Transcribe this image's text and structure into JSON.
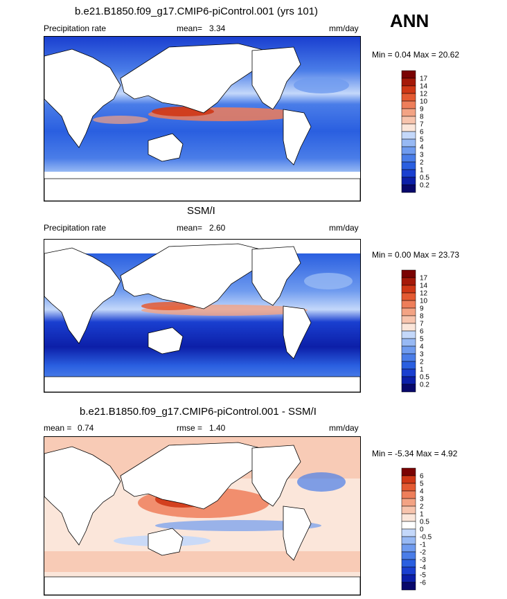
{
  "season": "ANN",
  "units_note": "mm/day",
  "chart_data": [
    {
      "type": "heatmap",
      "title": "b.e21.B1850.f09_g17.CMIP6-piControl.001 (yrs 101)",
      "left_label": "Precipitation rate",
      "stat1_label": "mean=",
      "stat1_value": "3.34",
      "units": "mm/day",
      "minmax": "Min =   0.04 Max =  20.62",
      "colorbar": {
        "levels": [
          "0.2",
          "0.5",
          "1",
          "2",
          "3",
          "4",
          "5",
          "6",
          "7",
          "8",
          "9",
          "10",
          "12",
          "14",
          "17"
        ],
        "colors": [
          "#08086b",
          "#0c1fa8",
          "#1a3fd0",
          "#2a5fe0",
          "#4a7de8",
          "#6f9bef",
          "#97b9f4",
          "#c4d8fa",
          "#fbe6da",
          "#f7c4ad",
          "#f3a384",
          "#ee7e5a",
          "#e45a32",
          "#cf3716",
          "#a51909",
          "#7a0303"
        ]
      }
    },
    {
      "type": "heatmap",
      "title": "SSM/I",
      "left_label": "Precipitation rate",
      "stat1_label": "mean=",
      "stat1_value": "2.60",
      "units": "mm/day",
      "minmax": "Min =   0.00 Max =  23.73",
      "colorbar": {
        "levels": [
          "0.2",
          "0.5",
          "1",
          "2",
          "3",
          "4",
          "5",
          "6",
          "7",
          "8",
          "9",
          "10",
          "12",
          "14",
          "17"
        ],
        "colors": [
          "#08086b",
          "#0c1fa8",
          "#1a3fd0",
          "#2a5fe0",
          "#4a7de8",
          "#6f9bef",
          "#97b9f4",
          "#c4d8fa",
          "#fbe6da",
          "#f7c4ad",
          "#f3a384",
          "#ee7e5a",
          "#e45a32",
          "#cf3716",
          "#a51909",
          "#7a0303"
        ]
      }
    },
    {
      "type": "heatmap",
      "title": "b.e21.B1850.f09_g17.CMIP6-piControl.001 - SSM/I",
      "left_label": "mean =",
      "left_value": "0.74",
      "stat1_label": "rmse =",
      "stat1_value": "1.40",
      "units": "mm/day",
      "minmax": "Min =  -5.34 Max =   4.92",
      "colorbar": {
        "levels": [
          "-6",
          "-5",
          "-4",
          "-3",
          "-2",
          "-1",
          "-0.5",
          "0",
          "0.5",
          "1",
          "2",
          "3",
          "4",
          "5",
          "6"
        ],
        "colors": [
          "#08086b",
          "#0c1fa8",
          "#1a3fd0",
          "#2a5fe0",
          "#4a7de8",
          "#6f9bef",
          "#97b9f4",
          "#c4d8fa",
          "#ffffff",
          "#fbe6da",
          "#f7c4ad",
          "#f3a384",
          "#ee7e5a",
          "#e45a32",
          "#cf3716",
          "#7a0303"
        ]
      }
    }
  ]
}
